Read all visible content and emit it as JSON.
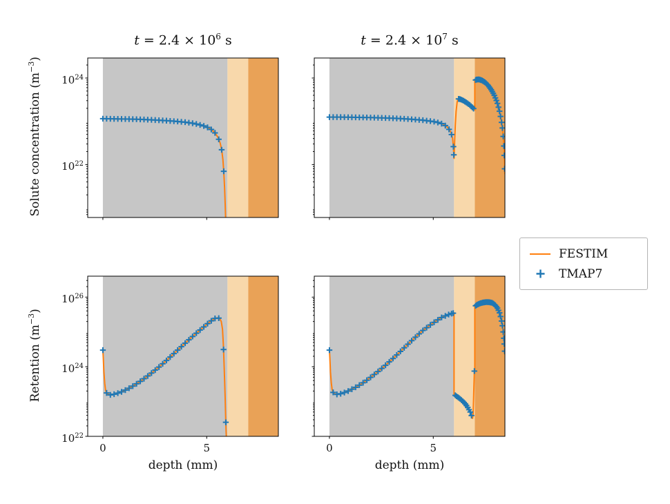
{
  "figure": {
    "titles": [
      {
        "var": "t",
        "body": " = 2.4 × 10",
        "exp": "6",
        "unit": " s"
      },
      {
        "var": "t",
        "body": " = 2.4 × 10",
        "exp": "7",
        "unit": " s"
      }
    ],
    "ylabels": [
      {
        "pre": "Solute concentration (m",
        "exp": "−3",
        "post": ")"
      },
      {
        "pre": "Retention (m",
        "exp": "−3",
        "post": ")"
      }
    ],
    "xlabel": "depth (mm)",
    "legend": {
      "entries": [
        {
          "label": "FESTIM",
          "type": "line",
          "color": "#ff7f0e"
        },
        {
          "label": "TMAP7",
          "type": "plus",
          "color": "#1f77b4"
        }
      ]
    }
  },
  "chart_data": {
    "type": "line",
    "xlabel": "depth (mm)",
    "xlim": [
      -0.73,
      8.45
    ],
    "xticks": [
      0,
      5
    ],
    "yscale": "log",
    "colors": {
      "festim": "#ff7f0e",
      "tmap7": "#1f77b4"
    },
    "regions": [
      {
        "x0": 0,
        "x1": 6,
        "color": "#c6c6c6"
      },
      {
        "x0": 6,
        "x1": 7,
        "color": "#f8d8ab"
      },
      {
        "x0": 7,
        "x1": 8.45,
        "color": "#e9a257"
      }
    ],
    "legend": [
      "FESTIM",
      "TMAP7"
    ],
    "subplots": [
      {
        "id": "solute-t1",
        "title": "t = 2.4 × 10⁶ s",
        "ylabel": "Solute concentration (m⁻³)",
        "ylim": [
          6e+20,
          2.9e+24
        ],
        "yticks": [
          22,
          24
        ],
        "festim": [
          [
            [
              0,
              1.15e+23
            ],
            [
              0.5,
              1.14e+23
            ],
            [
              1.0,
              1.13e+23
            ],
            [
              1.5,
              1.12e+23
            ],
            [
              2.0,
              1.1e+23
            ],
            [
              2.5,
              1.07e+23
            ],
            [
              3.0,
              1.04e+23
            ],
            [
              3.5,
              1e+23
            ],
            [
              4.0,
              9.5e+22
            ],
            [
              4.4,
              8.9e+22
            ],
            [
              4.8,
              8e+22
            ],
            [
              5.0,
              7.4e+22
            ],
            [
              5.2,
              6.6e+22
            ],
            [
              5.4,
              5.4e+22
            ],
            [
              5.55,
              4.2e+22
            ],
            [
              5.65,
              3.1e+22
            ],
            [
              5.72,
              2.2e+22
            ],
            [
              5.78,
              1.3e+22
            ],
            [
              5.82,
              7e+21
            ],
            [
              5.86,
              3e+21
            ],
            [
              5.89,
              1.2e+21
            ],
            [
              5.92,
              4e+20
            ]
          ]
        ],
        "tmap7_x": [
          [
            0,
            0.18,
            0.36,
            0.54,
            0.72,
            0.9,
            1.08,
            1.26,
            1.44,
            1.62,
            1.8,
            1.98,
            2.16,
            2.34,
            2.52,
            2.7,
            2.88,
            3.06,
            3.24,
            3.42,
            3.6,
            3.78,
            3.96,
            4.14,
            4.32,
            4.5,
            4.68,
            4.86,
            5.04,
            5.22,
            5.4,
            5.58,
            5.72,
            5.82
          ]
        ]
      },
      {
        "id": "solute-t2",
        "title": "t = 2.4 × 10⁷ s",
        "ylabel": "Solute concentration (m⁻³)",
        "ylim": [
          6e+20,
          2.9e+24
        ],
        "yticks": [
          22,
          24
        ],
        "festim": [
          [
            [
              0,
              1.25e+23
            ],
            [
              0.5,
              1.25e+23
            ],
            [
              1.0,
              1.24e+23
            ],
            [
              1.5,
              1.23e+23
            ],
            [
              2.0,
              1.22e+23
            ],
            [
              2.5,
              1.2e+23
            ],
            [
              3.0,
              1.18e+23
            ],
            [
              3.5,
              1.15e+23
            ],
            [
              4.0,
              1.11e+23
            ],
            [
              4.5,
              1.06e+23
            ],
            [
              5.0,
              9.9e+22
            ],
            [
              5.3,
              9.2e+22
            ],
            [
              5.5,
              8.5e+22
            ],
            [
              5.7,
              7.2e+22
            ],
            [
              5.85,
              5.6e+22
            ],
            [
              5.93,
              4e+22
            ],
            [
              5.97,
              2.6e+22
            ],
            [
              6.0,
              1.35e+22
            ],
            [
              6.03,
              3.5e+22
            ],
            [
              6.06,
              8e+22
            ],
            [
              6.1,
              1.7e+23
            ],
            [
              6.15,
              2.8e+23
            ],
            [
              6.2,
              3.3e+23
            ],
            [
              6.3,
              3.25e+23
            ],
            [
              6.45,
              3e+23
            ],
            [
              6.6,
              2.7e+23
            ],
            [
              6.75,
              2.4e+23
            ],
            [
              6.88,
              2.1e+23
            ],
            [
              6.97,
              1.9e+23
            ],
            [
              7.0,
              1.85e+23
            ],
            [
              7.0,
              8.8e+23
            ],
            [
              7.08,
              9.2e+23
            ],
            [
              7.2,
              9.3e+23
            ],
            [
              7.35,
              8.8e+23
            ],
            [
              7.5,
              7.9e+23
            ],
            [
              7.65,
              6.7e+23
            ],
            [
              7.8,
              5.3e+23
            ],
            [
              7.95,
              3.9e+23
            ],
            [
              8.08,
              2.7e+23
            ],
            [
              8.18,
              1.8e+23
            ],
            [
              8.27,
              1.1e+23
            ],
            [
              8.33,
              7e+22
            ],
            [
              8.38,
              4e+22
            ],
            [
              8.41,
              2.2e+22
            ],
            [
              8.43,
              1.2e+22
            ],
            [
              8.44,
              8e+21
            ],
            [
              8.45,
              6e+21
            ]
          ]
        ],
        "tmap7_x": [
          [
            0,
            0.18,
            0.36,
            0.54,
            0.72,
            0.9,
            1.08,
            1.26,
            1.44,
            1.62,
            1.8,
            1.98,
            2.16,
            2.34,
            2.52,
            2.7,
            2.88,
            3.06,
            3.24,
            3.42,
            3.6,
            3.78,
            3.96,
            4.14,
            4.32,
            4.5,
            4.68,
            4.86,
            5.04,
            5.22,
            5.4,
            5.58,
            5.76,
            5.88,
            5.97,
            5.99,
            6.22,
            6.28,
            6.34,
            6.4,
            6.46,
            6.52,
            6.58,
            6.64,
            6.7,
            6.76,
            6.82,
            6.88,
            6.94,
            7.04,
            7.09,
            7.14,
            7.19,
            7.24,
            7.29,
            7.34,
            7.39,
            7.44,
            7.49,
            7.54,
            7.59,
            7.64,
            7.69,
            7.74,
            7.79,
            7.84,
            7.89,
            7.94,
            7.99,
            8.04,
            8.09,
            8.14,
            8.19,
            8.24,
            8.29,
            8.33,
            8.37,
            8.4,
            8.42,
            8.44
          ]
        ]
      },
      {
        "id": "retention-t1",
        "title": "t = 2.4 × 10⁶ s",
        "ylabel": "Retention (m⁻³)",
        "ylim": [
          1e+22,
          4e+26
        ],
        "yticks": [
          22,
          24,
          26
        ],
        "festim": [
          [
            [
              0,
              3e+24
            ],
            [
              0.02,
              1.8e+24
            ],
            [
              0.05,
              7e+23
            ],
            [
              0.09,
              3.3e+23
            ],
            [
              0.13,
              2.1e+23
            ],
            [
              0.2,
              1.65e+23
            ],
            [
              0.35,
              1.55e+23
            ],
            [
              0.6,
              1.65e+23
            ],
            [
              0.9,
              1.9e+23
            ],
            [
              1.2,
              2.3e+23
            ],
            [
              1.5,
              2.9e+23
            ],
            [
              1.8,
              3.8e+23
            ],
            [
              2.1,
              5.1e+23
            ],
            [
              2.4,
              7e+23
            ],
            [
              2.7,
              9.8e+23
            ],
            [
              3.0,
              1.4e+24
            ],
            [
              3.3,
              2.05e+24
            ],
            [
              3.6,
              3e+24
            ],
            [
              3.9,
              4.4e+24
            ],
            [
              4.2,
              6.4e+24
            ],
            [
              4.5,
              9.2e+24
            ],
            [
              4.8,
              1.3e+25
            ],
            [
              5.05,
              1.75e+25
            ],
            [
              5.25,
              2.15e+25
            ],
            [
              5.4,
              2.45e+25
            ],
            [
              5.52,
              2.55e+25
            ],
            [
              5.62,
              2.45e+25
            ],
            [
              5.7,
              2e+25
            ],
            [
              5.76,
              1.2e+25
            ],
            [
              5.8,
              4.5e+24
            ],
            [
              5.83,
              1.5e+24
            ],
            [
              5.86,
              4.5e+23
            ],
            [
              5.89,
              1.2e+23
            ],
            [
              5.91,
              4e+22
            ],
            [
              5.93,
              1.6e+22
            ],
            [
              5.95,
              8e+21
            ]
          ]
        ],
        "tmap7_x": [
          [
            0,
            0.18,
            0.36,
            0.54,
            0.72,
            0.9,
            1.08,
            1.26,
            1.44,
            1.62,
            1.8,
            1.98,
            2.16,
            2.34,
            2.52,
            2.7,
            2.88,
            3.06,
            3.24,
            3.42,
            3.6,
            3.78,
            3.96,
            4.14,
            4.32,
            4.5,
            4.68,
            4.86,
            5.04,
            5.22,
            5.4,
            5.58,
            5.81,
            5.92
          ]
        ]
      },
      {
        "id": "retention-t2",
        "title": "t = 2.4 × 10⁷ s",
        "ylabel": "Retention (m⁻³)",
        "ylim": [
          1e+22,
          4e+26
        ],
        "yticks": [
          22,
          24,
          26
        ],
        "festim": [
          [
            [
              0,
              3e+24
            ],
            [
              0.02,
              1.8e+24
            ],
            [
              0.05,
              7e+23
            ],
            [
              0.09,
              3.4e+23
            ],
            [
              0.13,
              2.2e+23
            ],
            [
              0.2,
              1.7e+23
            ],
            [
              0.35,
              1.6e+23
            ],
            [
              0.6,
              1.7e+23
            ],
            [
              0.9,
              2e+23
            ],
            [
              1.2,
              2.45e+23
            ],
            [
              1.5,
              3.1e+23
            ],
            [
              1.8,
              4.1e+23
            ],
            [
              2.1,
              5.6e+23
            ],
            [
              2.4,
              7.8e+23
            ],
            [
              2.7,
              1.1e+24
            ],
            [
              3.0,
              1.6e+24
            ],
            [
              3.3,
              2.35e+24
            ],
            [
              3.6,
              3.5e+24
            ],
            [
              3.9,
              5.2e+24
            ],
            [
              4.2,
              7.6e+24
            ],
            [
              4.5,
              1.1e+25
            ],
            [
              4.8,
              1.5e+25
            ],
            [
              5.1,
              2e+25
            ],
            [
              5.4,
              2.6e+25
            ],
            [
              5.7,
              3.1e+25
            ],
            [
              5.9,
              3.4e+25
            ],
            [
              6.0,
              3.5e+25
            ],
            [
              6.0,
              1.6e+23
            ],
            [
              6.1,
              1.45e+23
            ],
            [
              6.25,
              1.25e+23
            ],
            [
              6.4,
              1.05e+23
            ],
            [
              6.55,
              8.5e+22
            ],
            [
              6.68,
              6.5e+22
            ],
            [
              6.78,
              5e+22
            ],
            [
              6.85,
              3.8e+22
            ],
            [
              6.89,
              3.2e+22
            ],
            [
              6.92,
              4.5e+22
            ],
            [
              6.94,
              1.1e+23
            ],
            [
              6.96,
              3e+23
            ],
            [
              6.98,
              7.5e+23
            ],
            [
              7.0,
              7.8e+23
            ],
            [
              7.0,
              5.4e+25
            ],
            [
              7.1,
              6e+25
            ],
            [
              7.25,
              6.6e+25
            ],
            [
              7.4,
              7e+25
            ],
            [
              7.55,
              7.2e+25
            ],
            [
              7.7,
              7.15e+25
            ],
            [
              7.85,
              6.8e+25
            ],
            [
              7.97,
              6e+25
            ],
            [
              8.08,
              5e+25
            ],
            [
              8.18,
              3.7e+25
            ],
            [
              8.27,
              2.4e+25
            ],
            [
              8.34,
              1.4e+25
            ],
            [
              8.39,
              8e+24
            ],
            [
              8.42,
              4.5e+24
            ],
            [
              8.44,
              2.8e+24
            ],
            [
              8.45,
              2.2e+24
            ]
          ]
        ],
        "tmap7_x": [
          [
            0,
            0.18,
            0.36,
            0.54,
            0.72,
            0.9,
            1.08,
            1.26,
            1.44,
            1.62,
            1.8,
            1.98,
            2.16,
            2.34,
            2.52,
            2.7,
            2.88,
            3.06,
            3.24,
            3.42,
            3.6,
            3.78,
            3.96,
            4.14,
            4.32,
            4.5,
            4.68,
            4.86,
            5.04,
            5.22,
            5.4,
            5.58,
            5.74,
            5.88,
            5.96,
            6.06,
            6.12,
            6.18,
            6.24,
            6.3,
            6.36,
            6.42,
            6.48,
            6.54,
            6.6,
            6.66,
            6.72,
            6.78,
            6.84,
            6.98,
            7.04,
            7.09,
            7.14,
            7.19,
            7.24,
            7.29,
            7.34,
            7.39,
            7.44,
            7.49,
            7.54,
            7.59,
            7.64,
            7.69,
            7.74,
            7.79,
            7.84,
            7.89,
            7.94,
            7.99,
            8.04,
            8.09,
            8.14,
            8.19,
            8.24,
            8.29,
            8.33,
            8.37,
            8.4,
            8.42,
            8.44
          ]
        ]
      }
    ]
  }
}
